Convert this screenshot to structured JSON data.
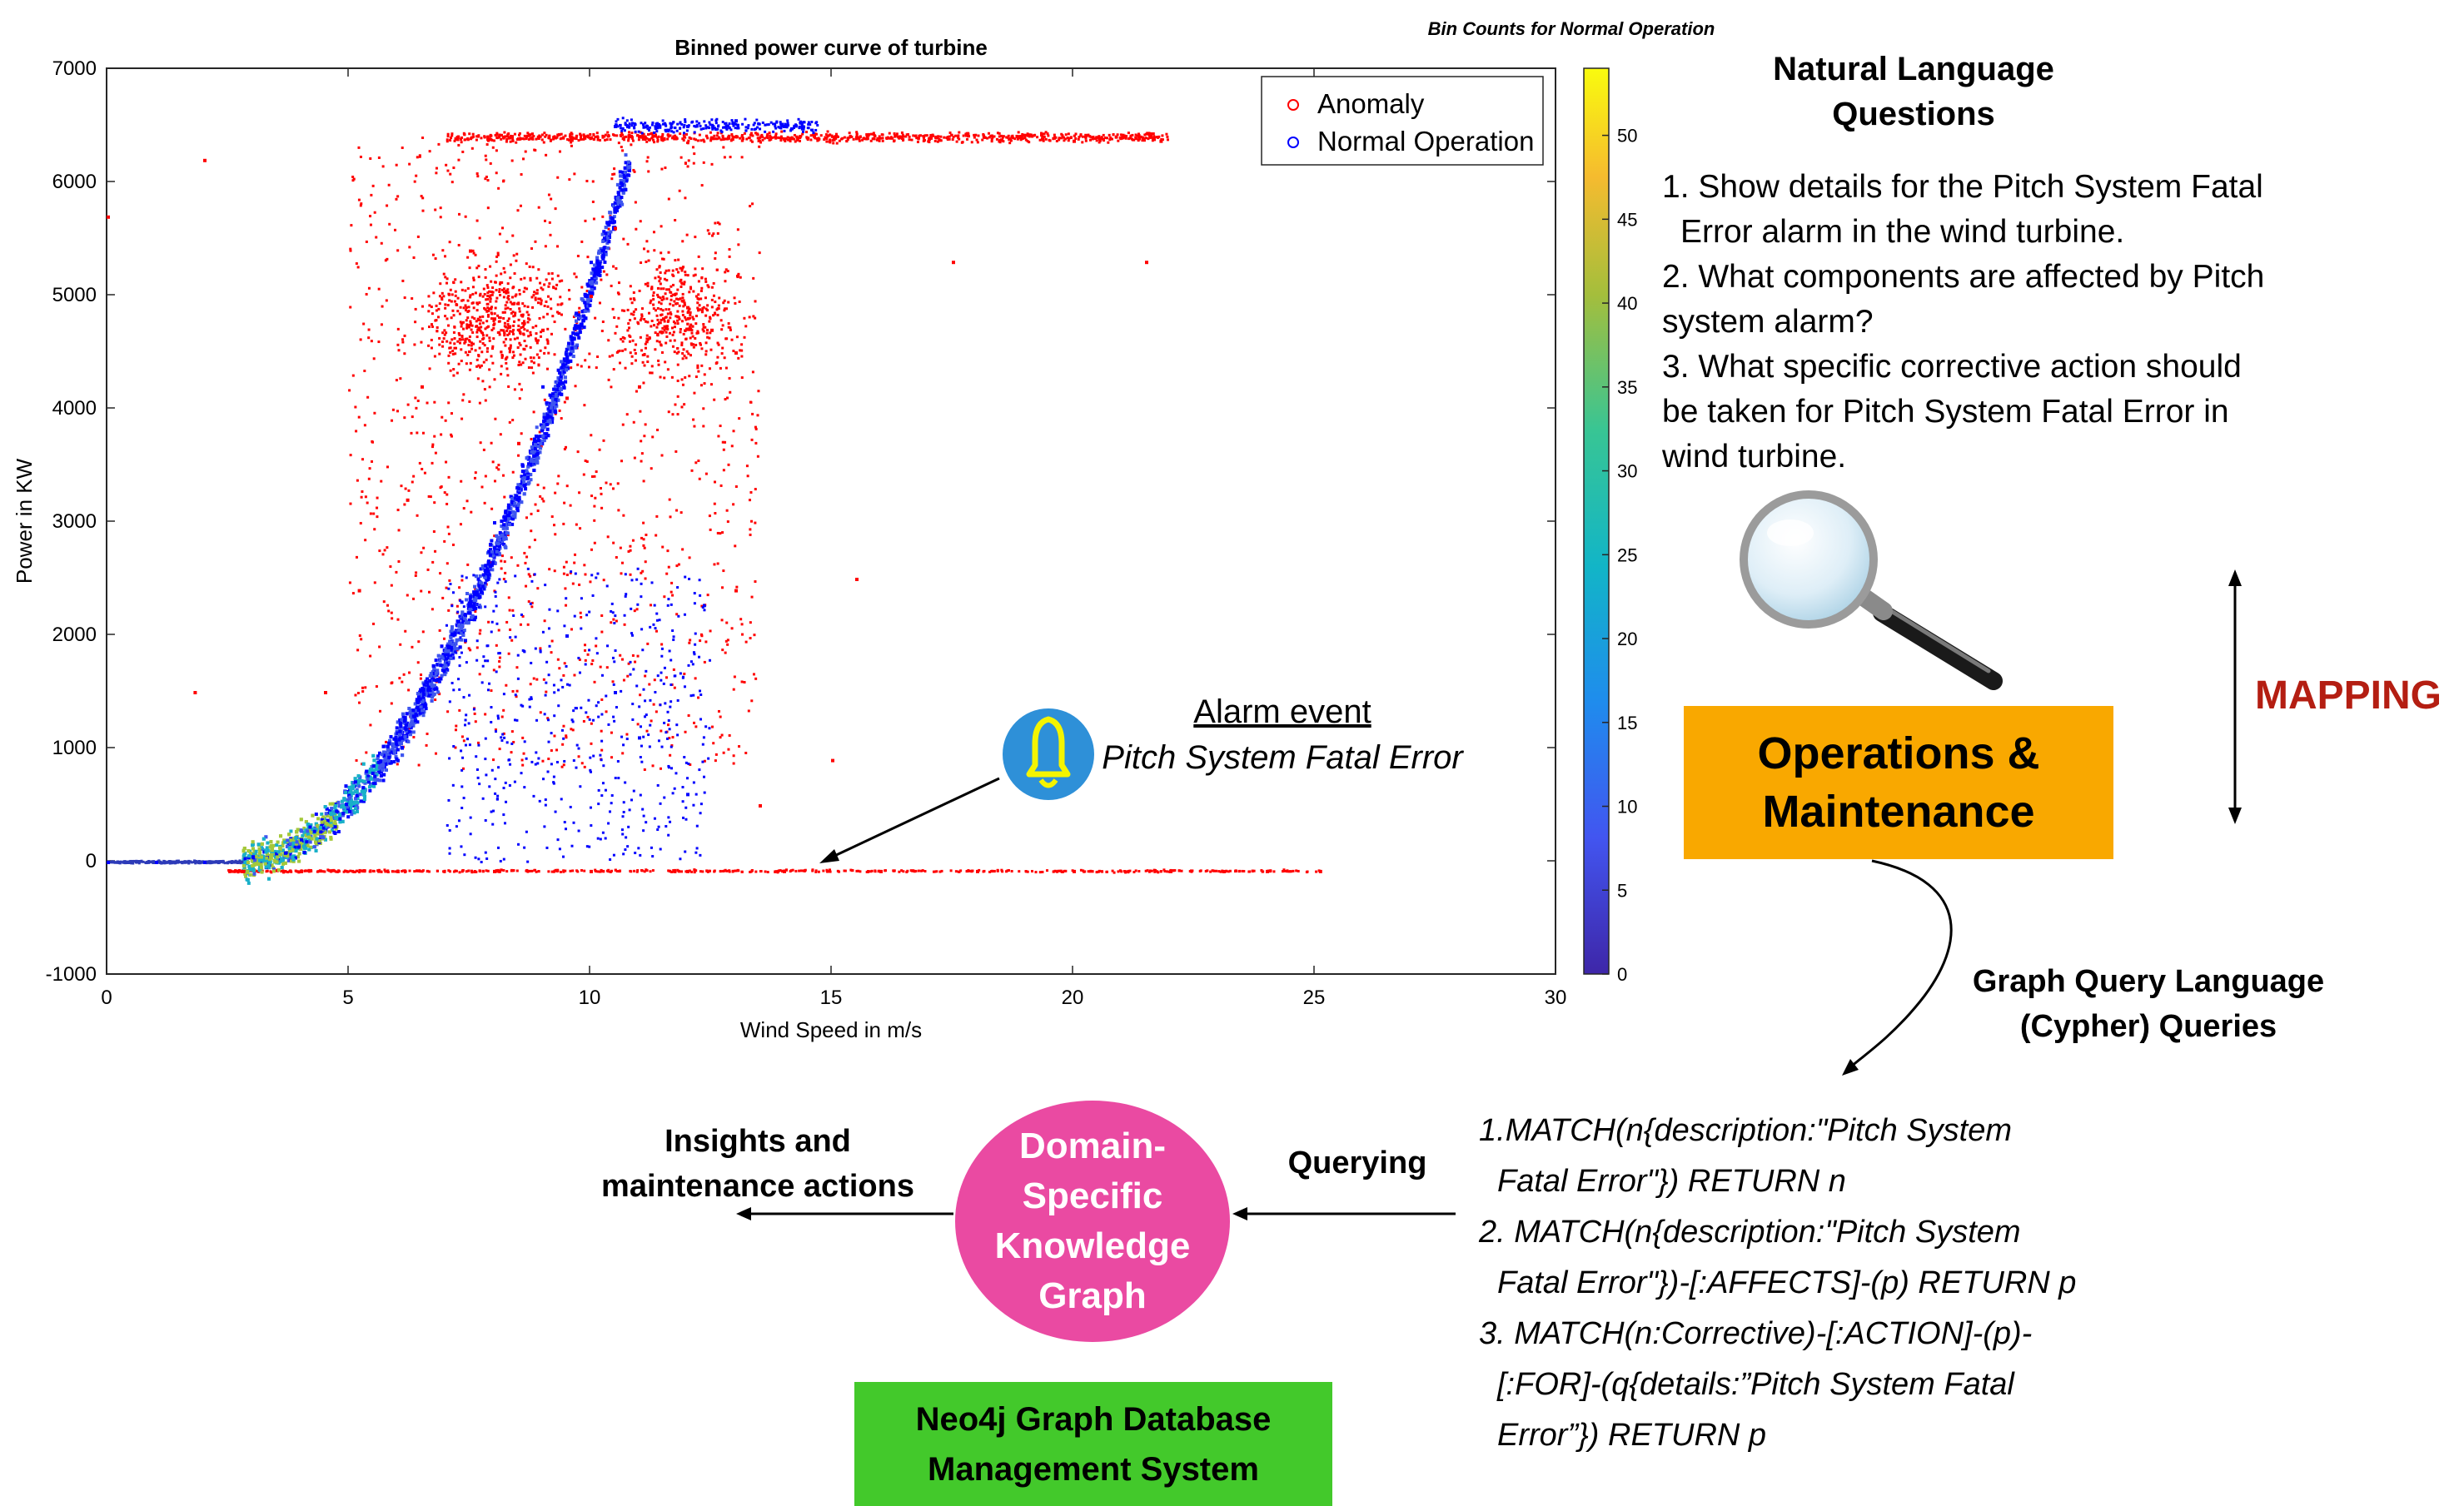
{
  "chart_data": {
    "type": "scatter",
    "title": "Binned power curve of turbine",
    "xlabel": "Wind Speed in m/s",
    "ylabel": "Power in KW",
    "xlim": [
      0,
      30
    ],
    "ylim": [
      -1000,
      7000
    ],
    "xticks": [
      0,
      5,
      10,
      15,
      20,
      25,
      30
    ],
    "yticks": [
      -1000,
      0,
      1000,
      2000,
      3000,
      4000,
      5000,
      6000,
      7000
    ],
    "legend": {
      "placement": "top-right",
      "entries": [
        "Anomaly",
        "Normal Operation"
      ]
    },
    "colorbar": {
      "title": "Bin Counts for Normal Operation",
      "range": [
        0,
        54
      ],
      "ticks": [
        0,
        5,
        10,
        15,
        20,
        25,
        30,
        35,
        40,
        45,
        50
      ]
    },
    "series": [
      {
        "name": "Anomaly",
        "color": "#ff0000",
        "points": [
          [
            2.8,
            -80
          ],
          [
            4,
            -80
          ],
          [
            6,
            -80
          ],
          [
            8,
            -80
          ],
          [
            10,
            -80
          ],
          [
            12,
            -80
          ],
          [
            14,
            -80
          ],
          [
            16,
            -80
          ],
          [
            18,
            -80
          ],
          [
            20,
            -80
          ],
          [
            22,
            -80
          ],
          [
            24,
            -80
          ],
          [
            25.1,
            -80
          ],
          [
            7.2,
            6390
          ],
          [
            8.5,
            6390
          ],
          [
            10,
            6400
          ],
          [
            11,
            6410
          ],
          [
            12.5,
            6400
          ],
          [
            14,
            6390
          ],
          [
            15.5,
            6400
          ],
          [
            17,
            6390
          ],
          [
            18.5,
            6380
          ],
          [
            20,
            6370
          ],
          [
            21.8,
            6370
          ],
          [
            8,
            4800
          ],
          [
            9,
            4700
          ],
          [
            10,
            5000
          ],
          [
            11.5,
            4800
          ],
          [
            12.5,
            4700
          ],
          [
            13,
            4500
          ],
          [
            8.5,
            3700
          ],
          [
            9.5,
            4100
          ],
          [
            6.5,
            4200
          ],
          [
            7.5,
            5400
          ],
          [
            10.5,
            5600
          ],
          [
            12,
            4900
          ],
          [
            11,
            4200
          ],
          [
            6.2,
            3200
          ],
          [
            5.2,
            2400
          ],
          [
            4.5,
            1500
          ],
          [
            1.8,
            1500
          ],
          [
            2,
            6200
          ],
          [
            13,
            2400
          ],
          [
            15.5,
            2500
          ],
          [
            0,
            5700
          ],
          [
            21.5,
            5300
          ],
          [
            17.5,
            5300
          ],
          [
            13.5,
            500
          ],
          [
            15,
            900
          ]
        ]
      },
      {
        "name": "Normal Operation",
        "color": "#0000ff",
        "points": [
          [
            0,
            0
          ],
          [
            1,
            0
          ],
          [
            2,
            0
          ],
          [
            3,
            50
          ],
          [
            4,
            200
          ],
          [
            5,
            450
          ],
          [
            6,
            900
          ],
          [
            7,
            1800
          ],
          [
            8,
            3000
          ],
          [
            9,
            4200
          ],
          [
            10,
            5300
          ],
          [
            10.6,
            6100
          ],
          [
            10.5,
            6500
          ],
          [
            12,
            6500
          ],
          [
            13,
            6550
          ],
          [
            14,
            6500
          ],
          [
            9.5,
            2000
          ],
          [
            10.5,
            1500
          ],
          [
            11,
            1100
          ],
          [
            12,
            600
          ]
        ]
      }
    ]
  },
  "chart_annotation": {
    "line1": "Alarm event",
    "line2": "Pitch System Fatal Error"
  },
  "colors": {
    "orange_box": "#f9a800",
    "mapping_red": "#b41e12",
    "kg_pink": "#ea4aa2",
    "neo4j_green": "#43c92b",
    "bell_blue": "#2e90d8",
    "bell_yellow": "#f4f400"
  },
  "icons": [
    "bell-icon",
    "magnifier-icon"
  ],
  "questions": {
    "heading_line1": "Natural Language",
    "heading_line2": "Questions",
    "q1_a": "1. Show details for the Pitch System Fatal",
    "q1_b": "Error alarm in the wind turbine.",
    "q2_a": "2. What components are affected by Pitch",
    "q2_b": "system alarm?",
    "q3_a": "3. What specific corrective action should",
    "q3_b": "be taken for Pitch System Fatal Error in",
    "q3_c": "wind turbine."
  },
  "mapping_label": "MAPPING",
  "om_box": {
    "line1": "Operations &",
    "line2": "Maintenance"
  },
  "gql": {
    "line1": "Graph Query Language",
    "line2": "(Cypher) Queries"
  },
  "cypher": {
    "l1": "1.MATCH(n{description:\"Pitch System",
    "l2": "Fatal Error\"}) RETURN n",
    "l3": "2. MATCH(n{description:\"Pitch System",
    "l4": "Fatal Error\"})-[:AFFECTS]-(p) RETURN p",
    "l5": "3. MATCH(n:Corrective)-[:ACTION]-(p)-",
    "l6": "[:FOR]-(q{details:”Pitch System Fatal",
    "l7": "Error”}) RETURN p"
  },
  "querying_label": "Querying",
  "kg": {
    "line1": "Domain-",
    "line2": "Specific",
    "line3": "Knowledge",
    "line4": "Graph"
  },
  "insights": {
    "line1": "Insights and",
    "line2": "maintenance actions"
  },
  "neo4j": {
    "line1": "Neo4j Graph Database",
    "line2": "Management System"
  }
}
